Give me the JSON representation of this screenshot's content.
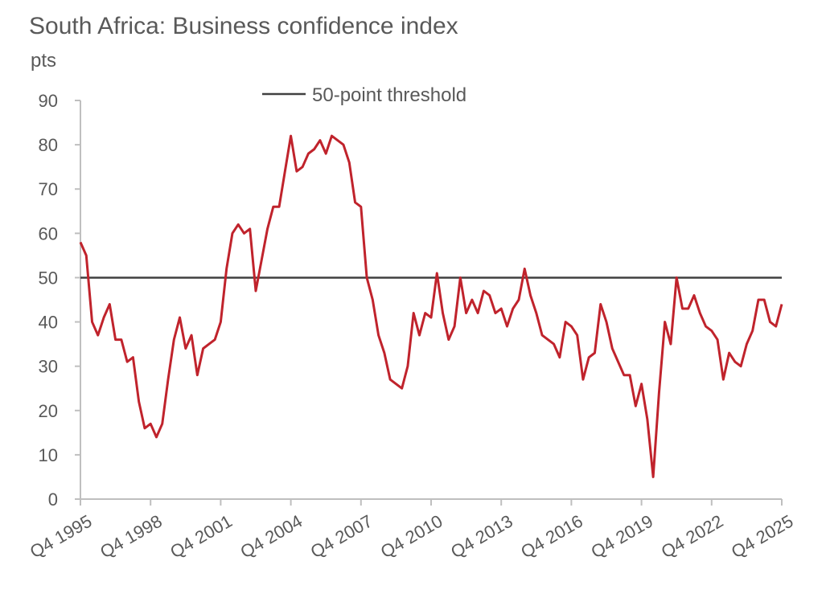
{
  "chart_data": {
    "type": "line",
    "title": "South Africa: Business confidence index",
    "y_unit": "pts",
    "ylim": [
      0,
      90
    ],
    "yticks": [
      0,
      10,
      20,
      30,
      40,
      50,
      60,
      70,
      80,
      90
    ],
    "x_tick_labels": [
      "Q4 1995",
      "Q4 1998",
      "Q4 2001",
      "Q4 2004",
      "Q4 2007",
      "Q4 2010",
      "Q4 2013",
      "Q4 2016",
      "Q4 2019",
      "Q4 2022",
      "Q4 2025"
    ],
    "x_start": "Q4 1995",
    "x_end": "Q1 2026",
    "threshold": {
      "name": "50-point threshold",
      "value": 50,
      "color": "#404040"
    },
    "legend_position": "top-center",
    "grid": false,
    "series": [
      {
        "color": "#c0232c",
        "values": [
          58,
          55,
          40,
          37,
          41,
          44,
          36,
          36,
          31,
          32,
          22,
          16,
          17,
          14,
          17,
          27,
          36,
          41,
          34,
          37,
          28,
          34,
          35,
          36,
          40,
          52,
          60,
          62,
          60,
          61,
          47,
          54,
          61,
          66,
          66,
          74,
          82,
          74,
          75,
          78,
          79,
          81,
          78,
          82,
          81,
          80,
          76,
          67,
          66,
          50,
          45,
          37,
          33,
          27,
          26,
          25,
          30,
          42,
          37,
          42,
          41,
          51,
          42,
          36,
          39,
          50,
          42,
          45,
          42,
          47,
          46,
          42,
          43,
          39,
          43,
          45,
          52,
          46,
          42,
          37,
          36,
          35,
          32,
          40,
          39,
          37,
          27,
          32,
          33,
          44,
          40,
          34,
          31,
          28,
          28,
          21,
          26,
          18,
          5,
          24,
          40,
          35,
          50,
          43,
          43,
          46,
          42,
          39,
          38,
          36,
          27,
          33,
          31,
          30,
          35,
          38,
          45,
          45,
          40,
          39,
          44
        ]
      }
    ]
  }
}
